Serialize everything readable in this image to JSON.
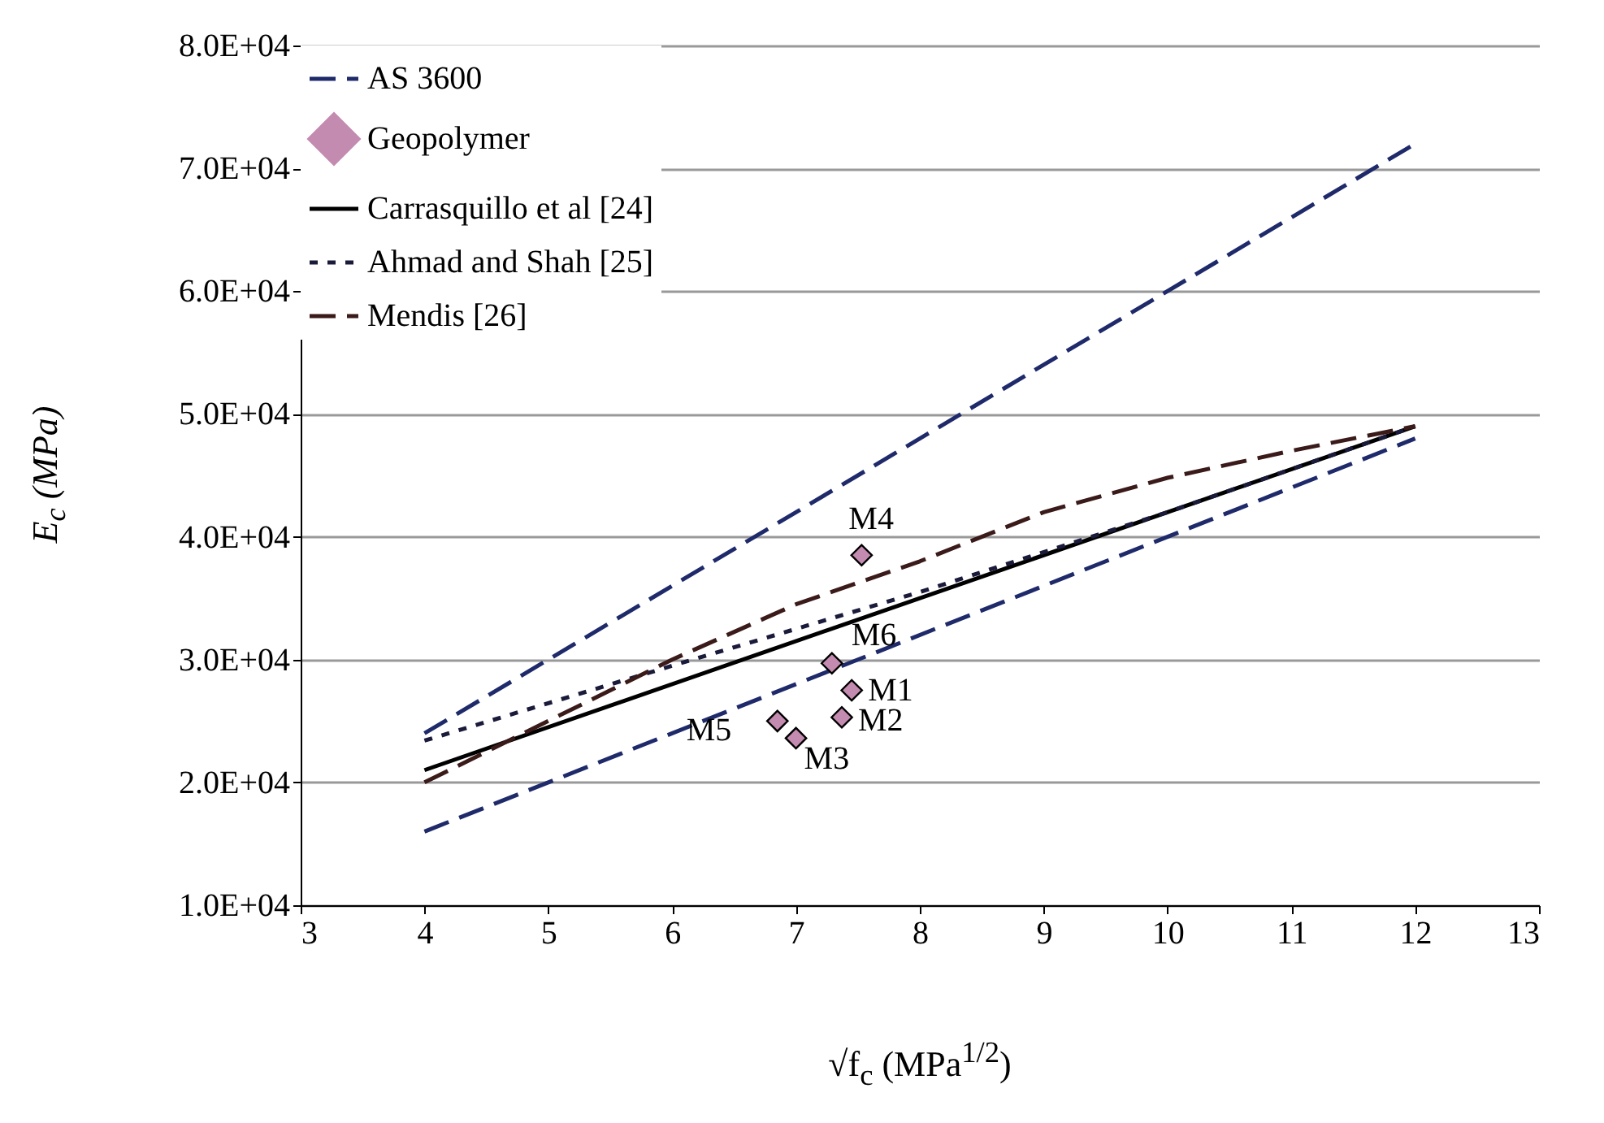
{
  "chart_data": {
    "type": "line",
    "xlabel": "√f$_{c}$ (MPa$^{1/2}$)",
    "ylabel": "E$_{c}$ (MPa)",
    "xlim": [
      3,
      13
    ],
    "xticks": [
      3,
      4,
      5,
      6,
      7,
      8,
      9,
      10,
      11,
      12,
      13
    ],
    "ylim": [
      10000,
      80000
    ],
    "yticks": [
      {
        "value": 10000,
        "label": "1.0E+04"
      },
      {
        "value": 20000,
        "label": "2.0E+04"
      },
      {
        "value": 30000,
        "label": "3.0E+04"
      },
      {
        "value": 40000,
        "label": "4.0E+04"
      },
      {
        "value": 50000,
        "label": "5.0E+04"
      },
      {
        "value": 60000,
        "label": "6.0E+04"
      },
      {
        "value": 70000,
        "label": "7.0E+04"
      },
      {
        "value": 80000,
        "label": "8.0E+04"
      }
    ],
    "grid": "y",
    "legend": "top left",
    "series": [
      {
        "name": "AS 3600",
        "type": "line",
        "line_style": "dashed",
        "color": "#1f2a6b",
        "x": [
          4,
          12
        ],
        "values": [
          24000,
          72000
        ]
      },
      {
        "type": "line",
        "line_style": "dashed",
        "color": "#1f2a6b",
        "x": [
          4,
          12
        ],
        "values": [
          16000,
          48000
        ]
      },
      {
        "name": "Geopolymer",
        "type": "scatter",
        "marker": "diamond",
        "color": "#c48bb0",
        "x": [
          7.45,
          7.37,
          7.0,
          7.53,
          6.85,
          7.29
        ],
        "values": [
          27500,
          25300,
          23600,
          38500,
          25000,
          29700
        ]
      },
      {
        "name": "Carrasquillo et al [24]",
        "type": "line",
        "line_style": "solid",
        "color": "#000000",
        "x": [
          4,
          12
        ],
        "values": [
          21000,
          49000
        ]
      },
      {
        "name": "Ahmad and Shah [25]",
        "type": "line",
        "line_style": "dotted",
        "color": "#1a1a3a",
        "x": [
          4,
          6,
          8,
          10,
          12
        ],
        "values": [
          23400,
          29500,
          35500,
          42000,
          49000
        ]
      },
      {
        "name": "Mendis [26]",
        "type": "line",
        "line_style": "dashed",
        "color": "#3b1a1a",
        "x": [
          4,
          5,
          6,
          7,
          8,
          9,
          10,
          11,
          12
        ],
        "values": [
          20000,
          25000,
          30000,
          34500,
          38000,
          42000,
          44800,
          47000,
          49000
        ]
      }
    ],
    "annotations": [
      {
        "text": "M1",
        "x": 7.45,
        "y": 27500
      },
      {
        "text": "M2",
        "x": 7.37,
        "y": 25300
      },
      {
        "text": "M3",
        "x": 7.0,
        "y": 23600
      },
      {
        "text": "M4",
        "x": 7.53,
        "y": 38500
      },
      {
        "text": "M5",
        "x": 6.85,
        "y": 25000
      },
      {
        "text": "M6",
        "x": 7.29,
        "y": 29700
      }
    ]
  }
}
